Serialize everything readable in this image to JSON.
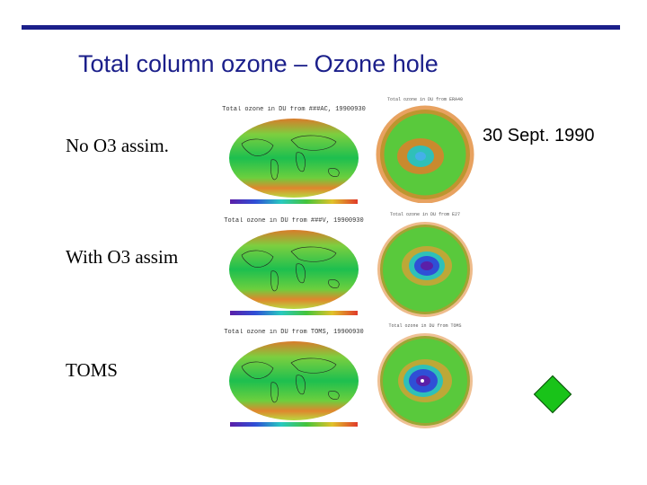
{
  "slide": {
    "title": "Total column ozone – Ozone hole",
    "date": "30 Sept. 1990",
    "colors": {
      "title": "#1b1f8a",
      "rule": "#1b1f8a",
      "diamond": "#19c319"
    },
    "rows": [
      {
        "label": "No O3 assim.",
        "map_title": "Total ozone in DU from ###AC, 19900930",
        "polar_title": "Total ozone in DU from ERA40",
        "hole": "weak"
      },
      {
        "label": "With O3 assim",
        "map_title": "Total ozone in DU from ###V, 19900930",
        "polar_title": "Total ozone in DU from E27",
        "hole": "strong"
      },
      {
        "label": "TOMS",
        "map_title": "Total ozone in DU from TOMS, 19900930",
        "polar_title": "Total ozone in DU from TOMS",
        "hole": "strong"
      }
    ]
  }
}
